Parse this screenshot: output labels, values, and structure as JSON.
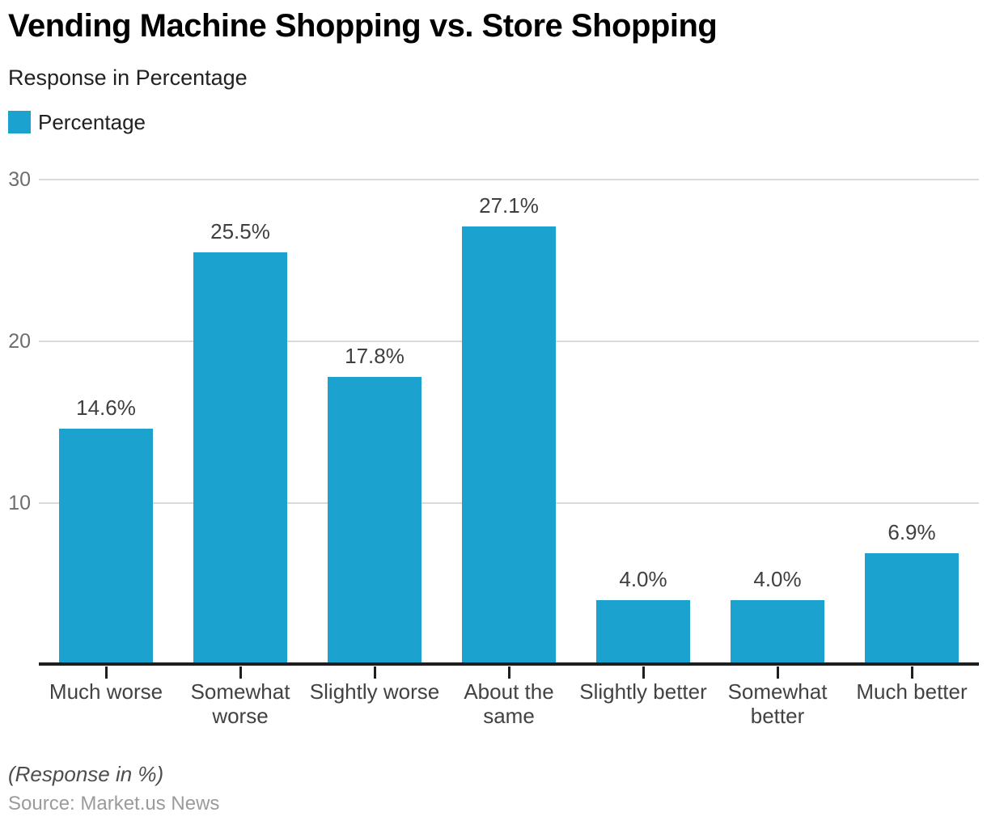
{
  "header": {
    "title": "Vending Machine Shopping vs. Store Shopping",
    "subtitle": "Response in Percentage"
  },
  "legend": {
    "label": "Percentage"
  },
  "footer": {
    "note": "(Response in %)",
    "source": "Source: Market.us News"
  },
  "colors": {
    "bar": "#1BA2CE",
    "grid": "#D9D9D9",
    "axis": "#1E1E1E",
    "ytick_label": "#6E6E6E",
    "value_label": "#3F3F3F",
    "category_label": "#424242"
  },
  "chart_data": {
    "type": "bar",
    "title": "Vending Machine Shopping vs. Store Shopping",
    "subtitle": "Response in Percentage",
    "legend_entries": [
      "Percentage"
    ],
    "legend_position": "top-left",
    "categories": [
      "Much worse",
      "Somewhat worse",
      "Slightly worse",
      "About the same",
      "Slightly better",
      "Somewhat better",
      "Much better"
    ],
    "category_lines": [
      [
        "Much worse"
      ],
      [
        "Somewhat",
        "worse"
      ],
      [
        "Slightly worse"
      ],
      [
        "About the",
        "same"
      ],
      [
        "Slightly better"
      ],
      [
        "Somewhat",
        "better"
      ],
      [
        "Much better"
      ]
    ],
    "values": [
      14.6,
      25.5,
      17.8,
      27.1,
      4.0,
      4.0,
      6.9
    ],
    "value_labels": [
      "14.6%",
      "25.5%",
      "17.8%",
      "27.1%",
      "4.0%",
      "4.0%",
      "6.9%"
    ],
    "xlabel": "",
    "ylabel": "",
    "ylim": [
      0,
      30
    ],
    "yticks": [
      10,
      20,
      30
    ],
    "grid": true,
    "bar_color": "#1BA2CE"
  }
}
